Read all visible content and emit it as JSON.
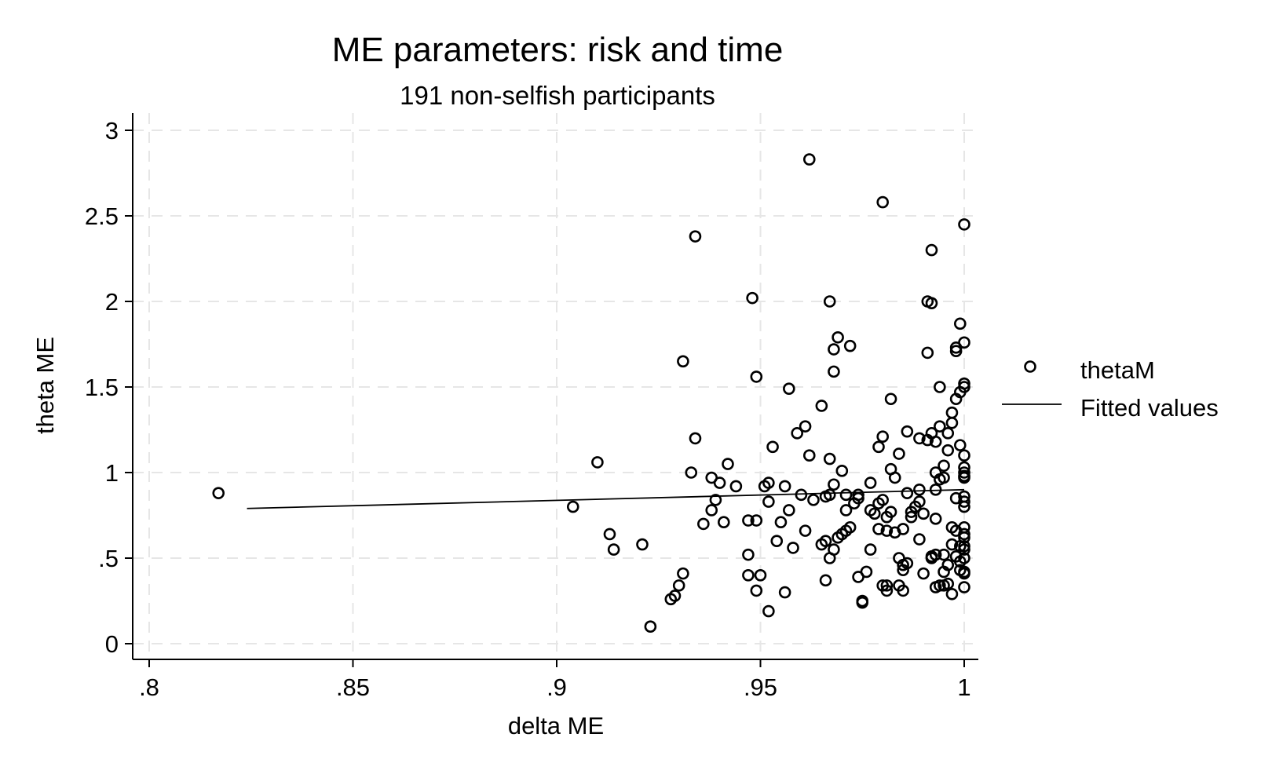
{
  "chart_data": {
    "type": "scatter",
    "title": "ME parameters: risk and time",
    "subtitle": "191 non-selfish participants",
    "xlabel": "delta ME",
    "ylabel": "theta ME",
    "xlim": [
      0.8,
      1.0
    ],
    "ylim": [
      0,
      3
    ],
    "xticks": [
      ".8",
      ".85",
      ".9",
      ".95",
      "1"
    ],
    "xtick_values": [
      0.8,
      0.85,
      0.9,
      0.95,
      1.0
    ],
    "yticks": [
      "0",
      ".5",
      "1",
      "1.5",
      "2",
      "2.5",
      "3"
    ],
    "ytick_values": [
      0,
      0.5,
      1,
      1.5,
      2,
      2.5,
      3
    ],
    "grid": true,
    "legend_position": "right",
    "legend": {
      "points_label": "thetaM",
      "line_label": "Fitted values"
    },
    "series": [
      {
        "name": "thetaM",
        "type": "scatter",
        "points": [
          [
            0.817,
            0.88
          ],
          [
            0.904,
            0.8
          ],
          [
            0.91,
            1.06
          ],
          [
            0.913,
            0.64
          ],
          [
            0.914,
            0.55
          ],
          [
            0.921,
            0.58
          ],
          [
            0.923,
            0.1
          ],
          [
            0.928,
            0.26
          ],
          [
            0.929,
            0.28
          ],
          [
            0.93,
            0.34
          ],
          [
            0.931,
            0.41
          ],
          [
            0.931,
            1.65
          ],
          [
            0.933,
            1.0
          ],
          [
            0.934,
            1.2
          ],
          [
            0.934,
            2.38
          ],
          [
            0.936,
            0.7
          ],
          [
            0.938,
            0.97
          ],
          [
            0.938,
            0.78
          ],
          [
            0.939,
            0.84
          ],
          [
            0.94,
            0.94
          ],
          [
            0.941,
            0.71
          ],
          [
            0.942,
            1.05
          ],
          [
            0.944,
            0.92
          ],
          [
            0.947,
            0.72
          ],
          [
            0.947,
            0.52
          ],
          [
            0.947,
            0.4
          ],
          [
            0.948,
            2.02
          ],
          [
            0.949,
            1.56
          ],
          [
            0.949,
            0.72
          ],
          [
            0.949,
            0.31
          ],
          [
            0.95,
            0.4
          ],
          [
            0.951,
            0.92
          ],
          [
            0.952,
            0.94
          ],
          [
            0.952,
            0.83
          ],
          [
            0.952,
            0.19
          ],
          [
            0.953,
            1.15
          ],
          [
            0.954,
            0.6
          ],
          [
            0.955,
            0.71
          ],
          [
            0.956,
            0.3
          ],
          [
            0.956,
            0.92
          ],
          [
            0.957,
            0.78
          ],
          [
            0.957,
            1.49
          ],
          [
            0.958,
            0.56
          ],
          [
            0.959,
            1.23
          ],
          [
            0.96,
            0.87
          ],
          [
            0.961,
            1.27
          ],
          [
            0.961,
            0.66
          ],
          [
            0.962,
            1.1
          ],
          [
            0.962,
            2.83
          ],
          [
            0.963,
            0.84
          ],
          [
            0.965,
            1.39
          ],
          [
            0.965,
            0.58
          ],
          [
            0.966,
            0.6
          ],
          [
            0.966,
            0.86
          ],
          [
            0.966,
            0.37
          ],
          [
            0.967,
            0.5
          ],
          [
            0.967,
            0.87
          ],
          [
            0.967,
            1.08
          ],
          [
            0.967,
            2.0
          ],
          [
            0.968,
            1.59
          ],
          [
            0.968,
            1.72
          ],
          [
            0.968,
            0.93
          ],
          [
            0.968,
            0.55
          ],
          [
            0.969,
            0.62
          ],
          [
            0.969,
            1.79
          ],
          [
            0.97,
            0.64
          ],
          [
            0.97,
            1.01
          ],
          [
            0.971,
            0.87
          ],
          [
            0.971,
            0.78
          ],
          [
            0.971,
            0.66
          ],
          [
            0.972,
            0.68
          ],
          [
            0.972,
            1.74
          ],
          [
            0.973,
            0.82
          ],
          [
            0.974,
            0.87
          ],
          [
            0.974,
            0.39
          ],
          [
            0.974,
            0.85
          ],
          [
            0.975,
            0.25
          ],
          [
            0.975,
            0.24
          ],
          [
            0.976,
            0.42
          ],
          [
            0.977,
            0.55
          ],
          [
            0.977,
            0.94
          ],
          [
            0.977,
            0.78
          ],
          [
            0.978,
            0.76
          ],
          [
            0.979,
            0.67
          ],
          [
            0.979,
            1.15
          ],
          [
            0.979,
            0.82
          ],
          [
            0.98,
            2.58
          ],
          [
            0.98,
            1.21
          ],
          [
            0.98,
            0.84
          ],
          [
            0.98,
            0.34
          ],
          [
            0.981,
            0.31
          ],
          [
            0.981,
            0.74
          ],
          [
            0.981,
            0.34
          ],
          [
            0.981,
            0.66
          ],
          [
            0.982,
            1.43
          ],
          [
            0.982,
            1.02
          ],
          [
            0.982,
            0.77
          ],
          [
            0.983,
            0.65
          ],
          [
            0.983,
            0.97
          ],
          [
            0.984,
            1.11
          ],
          [
            0.984,
            0.34
          ],
          [
            0.984,
            0.5
          ],
          [
            0.985,
            0.43
          ],
          [
            0.985,
            0.67
          ],
          [
            0.985,
            0.31
          ],
          [
            0.985,
            0.46
          ],
          [
            0.986,
            1.24
          ],
          [
            0.986,
            0.88
          ],
          [
            0.986,
            0.47
          ],
          [
            0.987,
            0.74
          ],
          [
            0.987,
            0.77
          ],
          [
            0.988,
            0.8
          ],
          [
            0.989,
            0.61
          ],
          [
            0.989,
            1.2
          ],
          [
            0.989,
            0.9
          ],
          [
            0.989,
            0.83
          ],
          [
            0.99,
            0.76
          ],
          [
            0.99,
            0.41
          ],
          [
            0.991,
            2.0
          ],
          [
            0.991,
            1.7
          ],
          [
            0.991,
            1.19
          ],
          [
            0.992,
            1.99
          ],
          [
            0.992,
            1.23
          ],
          [
            0.992,
            2.3
          ],
          [
            0.992,
            0.51
          ],
          [
            0.992,
            0.5
          ],
          [
            0.993,
            1.18
          ],
          [
            0.993,
            1.0
          ],
          [
            0.993,
            0.9
          ],
          [
            0.993,
            0.73
          ],
          [
            0.993,
            0.52
          ],
          [
            0.993,
            0.33
          ],
          [
            0.994,
            1.5
          ],
          [
            0.994,
            1.27
          ],
          [
            0.994,
            0.96
          ],
          [
            0.994,
            0.34
          ],
          [
            0.995,
            1.04
          ],
          [
            0.995,
            0.97
          ],
          [
            0.995,
            0.42
          ],
          [
            0.995,
            0.34
          ],
          [
            0.995,
            0.52
          ],
          [
            0.996,
            1.23
          ],
          [
            0.996,
            1.13
          ],
          [
            0.996,
            0.46
          ],
          [
            0.996,
            0.35
          ],
          [
            0.997,
            1.35
          ],
          [
            0.997,
            1.29
          ],
          [
            0.997,
            0.68
          ],
          [
            0.997,
            0.58
          ],
          [
            0.997,
            0.29
          ],
          [
            0.998,
            1.73
          ],
          [
            0.998,
            1.71
          ],
          [
            0.998,
            1.43
          ],
          [
            0.998,
            0.85
          ],
          [
            0.998,
            0.66
          ],
          [
            0.998,
            0.51
          ],
          [
            0.999,
            1.87
          ],
          [
            0.999,
            1.47
          ],
          [
            0.999,
            1.16
          ],
          [
            0.999,
            0.57
          ],
          [
            0.999,
            0.48
          ],
          [
            0.999,
            0.43
          ],
          [
            1.0,
            2.45
          ],
          [
            1.0,
            1.76
          ],
          [
            1.0,
            1.52
          ],
          [
            1.0,
            1.5
          ],
          [
            1.0,
            1.1
          ],
          [
            1.0,
            1.03
          ],
          [
            1.0,
            1.0
          ],
          [
            1.0,
            0.98
          ],
          [
            1.0,
            0.97
          ],
          [
            1.0,
            0.86
          ],
          [
            1.0,
            0.83
          ],
          [
            1.0,
            0.8
          ],
          [
            1.0,
            0.68
          ],
          [
            1.0,
            0.64
          ],
          [
            1.0,
            0.62
          ],
          [
            1.0,
            0.57
          ],
          [
            1.0,
            0.55
          ],
          [
            1.0,
            0.5
          ],
          [
            1.0,
            0.42
          ],
          [
            1.0,
            0.41
          ],
          [
            1.0,
            0.33
          ]
        ]
      },
      {
        "name": "Fitted values",
        "type": "line",
        "x": [
          0.824,
          1.0
        ],
        "y": [
          0.79,
          0.9
        ]
      }
    ]
  }
}
